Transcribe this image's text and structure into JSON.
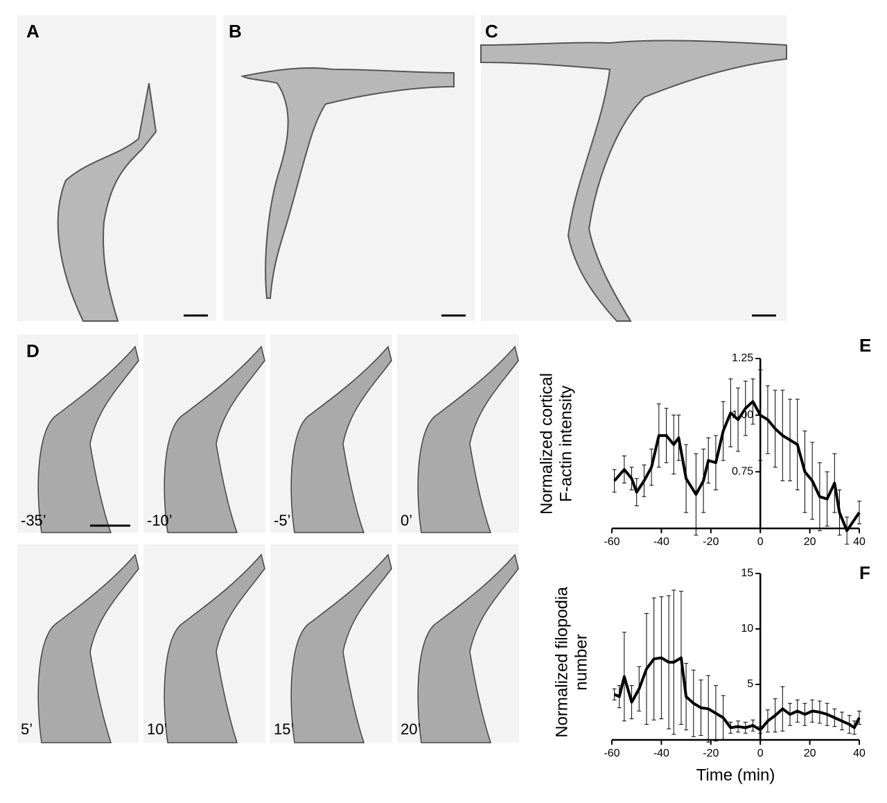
{
  "panel_labels": [
    "A",
    "B",
    "C",
    "D",
    "E",
    "F"
  ],
  "time_labels": [
    "-35’",
    "-10’",
    "-5’",
    "0’",
    "5’",
    "10’",
    "15’",
    "20’"
  ],
  "chart_data": [
    {
      "type": "line",
      "ylabel": [
        "Normalized cortical",
        "F-actin intensity"
      ],
      "x": [
        -59,
        -55,
        -52,
        -50,
        -47,
        -44,
        -41,
        -38,
        -35,
        -33,
        -30,
        -26,
        -23,
        -21,
        -18,
        -15,
        -12,
        -9,
        -6,
        -3,
        0,
        3,
        6,
        9,
        12,
        15,
        18,
        21,
        24,
        27,
        30,
        32,
        35,
        40
      ],
      "series": [
        {
          "color": "#000000",
          "values": [
            0.71,
            0.76,
            0.72,
            0.66,
            0.71,
            0.77,
            0.91,
            0.91,
            0.87,
            0.9,
            0.72,
            0.65,
            0.71,
            0.8,
            0.79,
            0.93,
            1.01,
            0.98,
            1.03,
            1.06,
            1.0,
            0.98,
            0.94,
            0.91,
            0.89,
            0.87,
            0.75,
            0.71,
            0.64,
            0.63,
            0.7,
            0.57,
            0.49,
            0.57
          ],
          "errors": [
            0.05,
            0.06,
            0.05,
            0.06,
            0.07,
            0.08,
            0.14,
            0.12,
            0.13,
            0.1,
            0.15,
            0.18,
            0.14,
            0.1,
            0.12,
            0.13,
            0.15,
            0.14,
            0.12,
            0.1,
            0.2,
            0.15,
            0.17,
            0.2,
            0.18,
            0.2,
            0.18,
            0.17,
            0.15,
            0.12,
            0.13,
            0.1,
            0.06,
            0.05
          ]
        }
      ],
      "xlim": [
        -60,
        40
      ],
      "xticks": [
        -60,
        -40,
        -20,
        0,
        20,
        40
      ],
      "ylim": [
        0.5,
        1.25
      ],
      "yticks": [
        0.75,
        {
          "value": 1,
          "label": "1.00"
        },
        1.25
      ],
      "grid": false
    },
    {
      "type": "line",
      "ylabel": [
        "Normalized filopodia",
        "number"
      ],
      "xlabel": "Time (min)",
      "x": [
        -59,
        -57,
        -55,
        -52,
        -49,
        -46,
        -43,
        -40,
        -37,
        -35,
        -32,
        -30,
        -27,
        -24,
        -21,
        -18,
        -15,
        -12,
        -9,
        -6,
        -3,
        0,
        3,
        6,
        9,
        12,
        15,
        18,
        21,
        24,
        27,
        30,
        33,
        36,
        38,
        40
      ],
      "series": [
        {
          "color": "#000000",
          "values": [
            4.1,
            3.9,
            5.7,
            3.4,
            4.6,
            6.4,
            7.3,
            7.4,
            7.0,
            7.0,
            7.4,
            3.9,
            3.3,
            2.9,
            2.8,
            2.4,
            2.0,
            1.1,
            1.2,
            1.1,
            1.3,
            0.9,
            1.7,
            2.2,
            2.8,
            2.3,
            2.6,
            2.3,
            2.6,
            2.5,
            2.3,
            2.0,
            1.7,
            1.4,
            1.1,
            2.0
          ],
          "errors": [
            0.5,
            1,
            4,
            1.5,
            2,
            5,
            5.5,
            5.5,
            6,
            6.5,
            6,
            3,
            3,
            2.5,
            3,
            2.5,
            2,
            0.5,
            0.5,
            0.5,
            0.5,
            0.3,
            1,
            1.5,
            2,
            1,
            1,
            1,
            1,
            1,
            1,
            0.8,
            0.8,
            0.8,
            0.6,
            0.6
          ]
        }
      ],
      "xlim": [
        -60,
        40
      ],
      "xticks": [
        -60,
        -40,
        -20,
        0,
        20,
        40
      ],
      "ylim": [
        0,
        15
      ],
      "yticks": [
        5,
        10,
        15
      ],
      "grid": false
    }
  ]
}
